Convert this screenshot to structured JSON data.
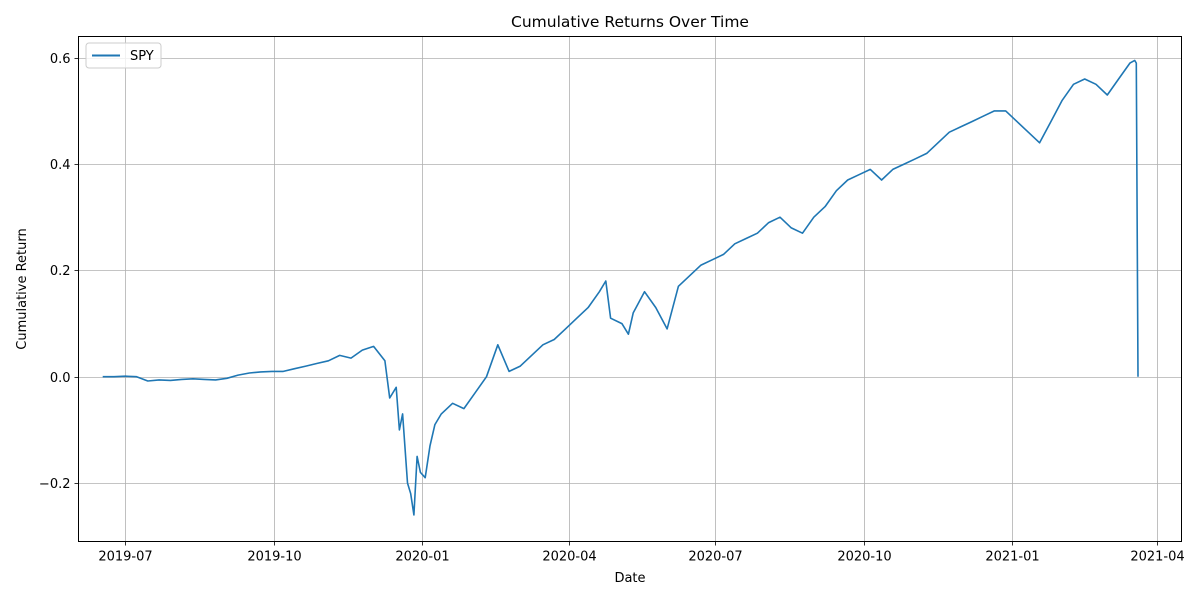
{
  "chart_data": {
    "type": "line",
    "title": "Cumulative Returns Over Time",
    "xlabel": "Date",
    "ylabel": "Cumulative Return",
    "xlim": [
      "2019-06-02",
      "2021-04-16"
    ],
    "ylim": [
      -0.31,
      0.64
    ],
    "grid": true,
    "legend_position": "top-left",
    "x_ticks": [
      "2019-07-01",
      "2019-10-01",
      "2020-01-01",
      "2020-04-01",
      "2020-07-01",
      "2020-10-01",
      "2021-01-01",
      "2021-04-01"
    ],
    "x_tick_labels": [
      "2019-07",
      "2019-10",
      "2020-01",
      "2020-04",
      "2020-07",
      "2020-10",
      "2021-01",
      "2021-04"
    ],
    "y_ticks": [
      -0.2,
      0.0,
      0.2,
      0.4,
      0.6
    ],
    "y_tick_labels": [
      "−0.2",
      "0.0",
      "0.2",
      "0.4",
      "0.6"
    ],
    "series": [
      {
        "name": "SPY",
        "color": "#1f77b4",
        "x": [
          "2019-06-17",
          "2019-06-24",
          "2019-07-01",
          "2019-07-08",
          "2019-07-15",
          "2019-07-22",
          "2019-07-29",
          "2019-08-05",
          "2019-08-12",
          "2019-08-19",
          "2019-08-26",
          "2019-09-02",
          "2019-09-09",
          "2019-09-16",
          "2019-09-23",
          "2019-09-30",
          "2019-10-07",
          "2019-10-14",
          "2019-10-21",
          "2019-10-28",
          "2019-11-04",
          "2019-11-11",
          "2019-11-18",
          "2019-11-25",
          "2019-12-02",
          "2019-12-09",
          "2019-12-12",
          "2019-12-16",
          "2019-12-18",
          "2019-12-20",
          "2019-12-23",
          "2019-12-25",
          "2019-12-27",
          "2019-12-29",
          "2019-12-31",
          "2020-01-03",
          "2020-01-06",
          "2020-01-09",
          "2020-01-13",
          "2020-01-20",
          "2020-01-27",
          "2020-02-03",
          "2020-02-10",
          "2020-02-17",
          "2020-02-24",
          "2020-03-02",
          "2020-03-09",
          "2020-03-16",
          "2020-03-23",
          "2020-03-30",
          "2020-04-06",
          "2020-04-13",
          "2020-04-20",
          "2020-04-24",
          "2020-04-27",
          "2020-05-04",
          "2020-05-08",
          "2020-05-11",
          "2020-05-18",
          "2020-05-25",
          "2020-06-01",
          "2020-06-08",
          "2020-06-15",
          "2020-06-22",
          "2020-06-29",
          "2020-07-06",
          "2020-07-13",
          "2020-07-20",
          "2020-07-27",
          "2020-08-03",
          "2020-08-10",
          "2020-08-17",
          "2020-08-24",
          "2020-08-31",
          "2020-09-07",
          "2020-09-14",
          "2020-09-21",
          "2020-09-28",
          "2020-10-05",
          "2020-10-12",
          "2020-10-19",
          "2020-10-26",
          "2020-11-02",
          "2020-11-09",
          "2020-11-16",
          "2020-11-23",
          "2020-11-30",
          "2020-12-07",
          "2020-12-14",
          "2020-12-21",
          "2020-12-28",
          "2021-01-04",
          "2021-01-11",
          "2021-01-18",
          "2021-01-25",
          "2021-02-01",
          "2021-02-08",
          "2021-02-15",
          "2021-02-22",
          "2021-03-01",
          "2021-03-08",
          "2021-03-15",
          "2021-03-18",
          "2021-03-19",
          "2021-03-20"
        ],
        "values": [
          0.0,
          0.0,
          0.001,
          0.0,
          -0.008,
          -0.006,
          -0.007,
          -0.005,
          -0.004,
          -0.005,
          -0.006,
          -0.003,
          0.003,
          0.007,
          0.009,
          0.01,
          0.01,
          0.015,
          0.02,
          0.025,
          0.03,
          0.04,
          0.035,
          0.05,
          0.057,
          0.03,
          -0.04,
          -0.02,
          -0.1,
          -0.07,
          -0.2,
          -0.22,
          -0.26,
          -0.15,
          -0.18,
          -0.19,
          -0.13,
          -0.09,
          -0.07,
          -0.05,
          -0.06,
          -0.03,
          0.0,
          0.06,
          0.01,
          0.02,
          0.04,
          0.06,
          0.07,
          0.09,
          0.11,
          0.13,
          0.16,
          0.18,
          0.11,
          0.1,
          0.08,
          0.12,
          0.16,
          0.13,
          0.09,
          0.17,
          0.19,
          0.21,
          0.22,
          0.23,
          0.25,
          0.26,
          0.27,
          0.29,
          0.3,
          0.28,
          0.27,
          0.3,
          0.32,
          0.35,
          0.37,
          0.38,
          0.39,
          0.37,
          0.39,
          0.4,
          0.41,
          0.42,
          0.44,
          0.46,
          0.47,
          0.48,
          0.49,
          0.5,
          0.5,
          0.48,
          0.46,
          0.44,
          0.48,
          0.52,
          0.55,
          0.56,
          0.55,
          0.53,
          0.56,
          0.59,
          0.595,
          0.59,
          0.0
        ]
      }
    ]
  }
}
